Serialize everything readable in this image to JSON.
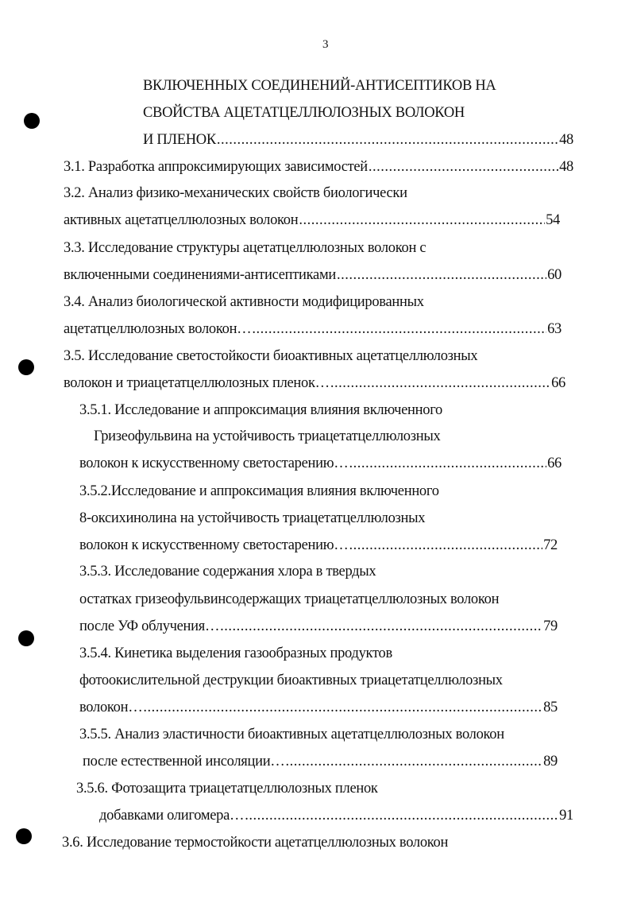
{
  "page_number": "3",
  "toc": [
    {
      "text": "ВКЛЮЧЕННЫХ СОЕДИНЕНИЙ-АНТИСЕПТИКОВ НА",
      "page": ""
    },
    {
      "text": "СВОЙСТВА АЦЕТАТЦЕЛЛЮЛОЗНЫХ ВОЛОКОН",
      "page": ""
    },
    {
      "text": "И ПЛЕНОК",
      "page": "48"
    },
    {
      "text": "3.1. Разработка аппроксимирующих зависимостей",
      "page": "48"
    },
    {
      "text": "3.2. Анализ физико-механических свойств биологически",
      "page": ""
    },
    {
      "text": "активных ацетатцеллюлозных волокон",
      "page": "54"
    },
    {
      "text": "3.3. Исследование структуры ацетатцеллюлозных волокон с",
      "page": ""
    },
    {
      "text": "включенными соединениями-антисептиками",
      "page": "60"
    },
    {
      "text": "3.4. Анализ биологической активности модифицированных",
      "page": ""
    },
    {
      "text": "ацетатцеллюлозных волокон…",
      "page": "63"
    },
    {
      "text": "3.5. Исследование светостойкости биоактивных ацетатцеллюлозных",
      "page": ""
    },
    {
      "text": "волокон и триацетатцеллюлозных пленок…",
      "page": "66"
    },
    {
      "text": "3.5.1. Исследование и аппроксимация влияния включенного",
      "page": ""
    },
    {
      "text": "Гризеофульвина на устойчивость триацетатцеллюлозных",
      "page": ""
    },
    {
      "text": "волокон к искусственному светостарению…",
      "page": "66"
    },
    {
      "text": "3.5.2.Исследование и аппроксимация влияния включенного",
      "page": ""
    },
    {
      "text": "8-оксихинолина на устойчивость триацетатцеллюлозных",
      "page": ""
    },
    {
      "text": "волокон к искусственному светостарению…",
      "page": "72"
    },
    {
      "text": "3.5.3. Исследование содержания хлора в твердых",
      "page": ""
    },
    {
      "text": "остатках гризеофульвинсодержащих триацетатцеллюлозных волокон",
      "page": ""
    },
    {
      "text": "после УФ облучения…",
      "page": "79"
    },
    {
      "text": "3.5.4. Кинетика выделения газообразных продуктов",
      "page": ""
    },
    {
      "text": "фотоокислительной деструкции биоактивных триацетатцеллюлозных",
      "page": ""
    },
    {
      "text": "волокон…",
      "page": "85"
    },
    {
      "text": "3.5.5. Анализ эластичности биоактивных ацетатцеллюлозных волокон",
      "page": ""
    },
    {
      "text": "после естественной инсоляции…",
      "page": "89"
    },
    {
      "text": "3.5.6. Фотозащита триацетатцеллюлозных пленок",
      "page": ""
    },
    {
      "text": "добавками олигомера…",
      "page": "91"
    },
    {
      "text": "3.6. Исследование термостойкости ацетатцеллюлозных волокон",
      "page": ""
    }
  ]
}
